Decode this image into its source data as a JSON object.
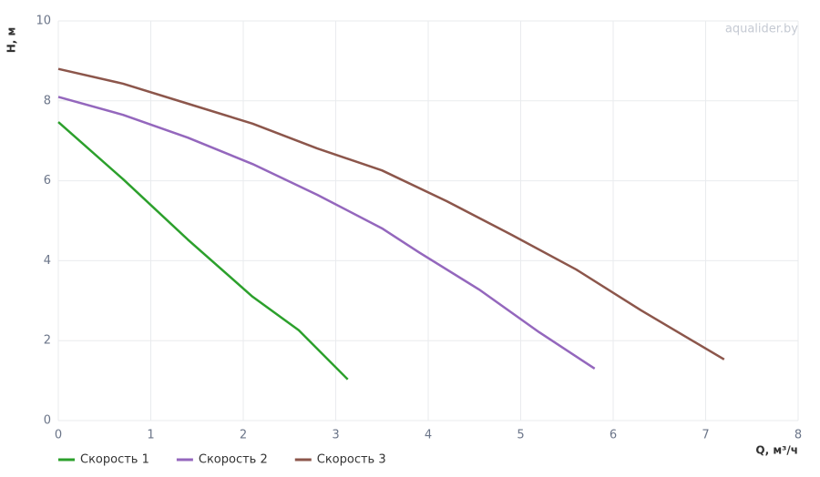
{
  "chart_data": {
    "type": "line",
    "watermark": "aqualider.by",
    "x_label": "Q, м³/ч",
    "y_label": "H, м",
    "xlim": [
      0,
      8
    ],
    "xticks": [
      0,
      1,
      2,
      3,
      4,
      5,
      6,
      7,
      8
    ],
    "ylim": [
      0,
      10
    ],
    "yticks": [
      0,
      2,
      4,
      6,
      8,
      10
    ],
    "grid": true,
    "legend": "bottom-left",
    "series": [
      {
        "name": "Скорость 1",
        "color": "#2ca02c",
        "x": [
          0,
          0.7,
          1.4,
          2.1,
          2.6,
          3.13
        ],
        "values": [
          7.47,
          6.04,
          4.53,
          3.1,
          2.26,
          1.03
        ]
      },
      {
        "name": "Скорость 2",
        "color": "#9467bd",
        "x": [
          0,
          0.7,
          1.4,
          2.1,
          2.8,
          3.5,
          3.9,
          4.55,
          5.2,
          5.8
        ],
        "values": [
          8.1,
          7.65,
          7.08,
          6.42,
          5.65,
          4.81,
          4.21,
          3.28,
          2.21,
          1.3
        ]
      },
      {
        "name": "Скорость 3",
        "color": "#8c564b",
        "x": [
          0,
          0.7,
          1.4,
          2.1,
          2.8,
          3.5,
          4.2,
          4.9,
          5.6,
          6.3,
          7.2
        ],
        "values": [
          8.8,
          8.43,
          7.93,
          7.43,
          6.81,
          6.26,
          5.49,
          4.65,
          3.78,
          2.76,
          1.53
        ]
      }
    ]
  }
}
